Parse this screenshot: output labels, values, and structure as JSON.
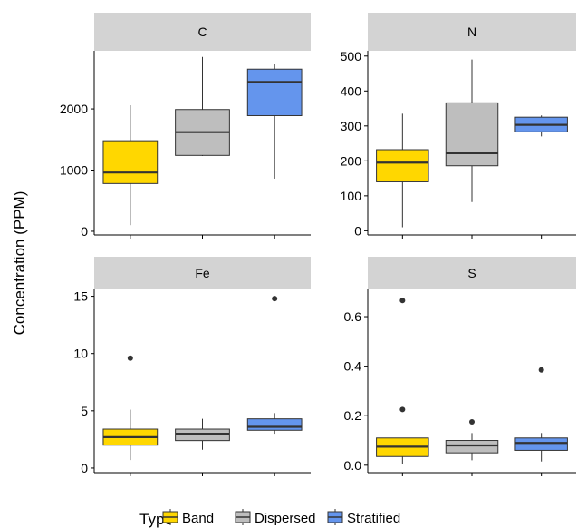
{
  "chart_data": {
    "type": "boxplot",
    "ylabel": "Concentration (PPM)",
    "legend": {
      "title": "Type",
      "placement": "bottom",
      "entries": [
        "Band",
        "Dispersed",
        "Stratified"
      ]
    },
    "colors": {
      "Band": "#FFD700",
      "Dispersed": "#BEBEBE",
      "Stratified": "#6495ED",
      "strip": "#D3D3D3",
      "line": "#333333"
    },
    "categories": [
      "Band",
      "Dispersed",
      "Stratified"
    ],
    "facets": [
      {
        "name": "C",
        "ylim": [
          -60,
          2950
        ],
        "yticks": [
          0,
          1000,
          2000
        ],
        "boxes": [
          {
            "type": "Band",
            "min": 100,
            "q1": 780,
            "median": 960,
            "q3": 1480,
            "max": 2060,
            "outliers": []
          },
          {
            "type": "Dispersed",
            "min": 1230,
            "q1": 1240,
            "median": 1620,
            "q3": 1990,
            "max": 2850,
            "outliers": []
          },
          {
            "type": "Stratified",
            "min": 860,
            "q1": 1890,
            "median": 2440,
            "q3": 2650,
            "max": 2730,
            "outliers": []
          }
        ]
      },
      {
        "name": "N",
        "ylim": [
          -12,
          515
        ],
        "yticks": [
          0,
          100,
          200,
          300,
          400,
          500
        ],
        "boxes": [
          {
            "type": "Band",
            "min": 10,
            "q1": 140,
            "median": 195,
            "q3": 232,
            "max": 335,
            "outliers": []
          },
          {
            "type": "Dispersed",
            "min": 82,
            "q1": 186,
            "median": 222,
            "q3": 366,
            "max": 490,
            "outliers": []
          },
          {
            "type": "Stratified",
            "min": 270,
            "q1": 283,
            "median": 303,
            "q3": 325,
            "max": 330,
            "outliers": []
          }
        ]
      },
      {
        "name": "Fe",
        "ylim": [
          -0.4,
          15.6
        ],
        "yticks": [
          0,
          5,
          10,
          15
        ],
        "boxes": [
          {
            "type": "Band",
            "min": 0.7,
            "q1": 2.0,
            "median": 2.7,
            "q3": 3.4,
            "max": 5.1,
            "outliers": [
              9.6
            ]
          },
          {
            "type": "Dispersed",
            "min": 1.6,
            "q1": 2.4,
            "median": 3.0,
            "q3": 3.4,
            "max": 4.3,
            "outliers": []
          },
          {
            "type": "Stratified",
            "min": 3.0,
            "q1": 3.3,
            "median": 3.6,
            "q3": 4.3,
            "max": 4.8,
            "outliers": [
              14.8
            ]
          }
        ]
      },
      {
        "name": "S",
        "ylim": [
          -0.03,
          0.71
        ],
        "yticks": [
          0.0,
          0.2,
          0.4,
          0.6
        ],
        "tick_decimals": 1,
        "boxes": [
          {
            "type": "Band",
            "min": 0.005,
            "q1": 0.035,
            "median": 0.075,
            "q3": 0.11,
            "max": 0.11,
            "outliers": [
              0.225,
              0.665
            ]
          },
          {
            "type": "Dispersed",
            "min": 0.02,
            "q1": 0.05,
            "median": 0.08,
            "q3": 0.1,
            "max": 0.13,
            "outliers": [
              0.175
            ]
          },
          {
            "type": "Stratified",
            "min": 0.015,
            "q1": 0.06,
            "median": 0.09,
            "q3": 0.11,
            "max": 0.13,
            "outliers": [
              0.385
            ]
          }
        ]
      }
    ]
  }
}
